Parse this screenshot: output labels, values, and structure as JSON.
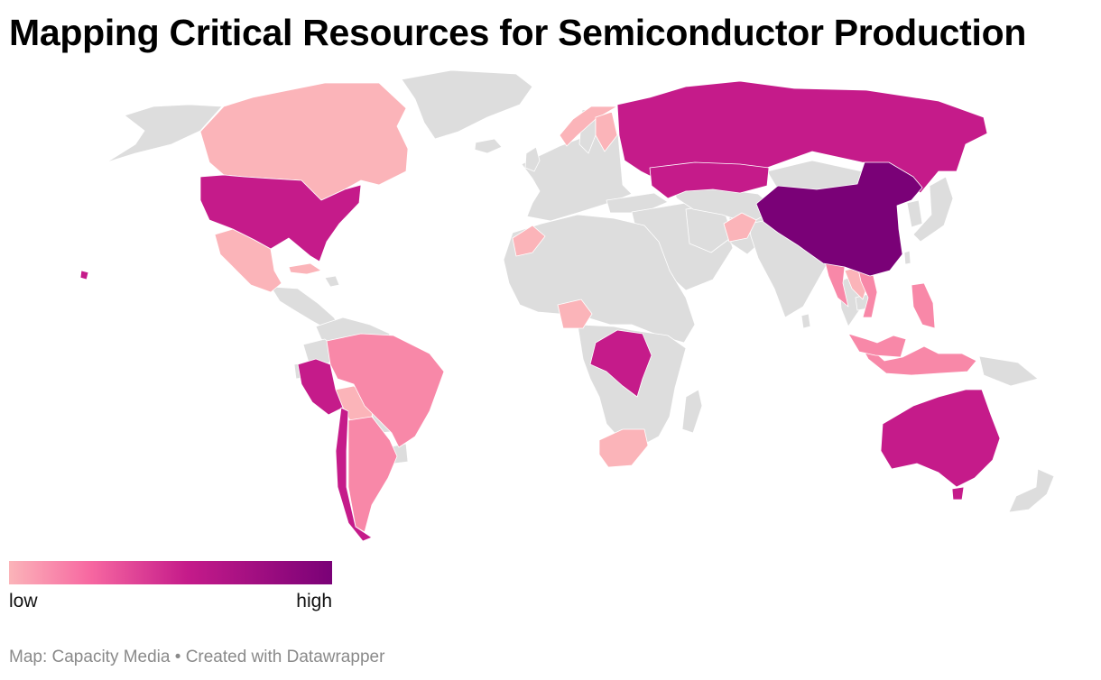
{
  "title": "Mapping Critical Resources for Semiconductor Production",
  "legend": {
    "low_label": "low",
    "high_label": "high",
    "gradient_colors": [
      "#fbb4b9",
      "#f768a1",
      "#c51b8a",
      "#7a0177"
    ]
  },
  "footer": {
    "source": "Map: Capacity Media",
    "separator": "•",
    "credit": "Created with Datawrapper"
  },
  "map": {
    "no_data_color": "#dddddd",
    "levels": {
      "low": "#fbb4b9",
      "medium_low": "#f888a8",
      "medium_high": "#c51b8a",
      "highest": "#7a0177"
    },
    "regions": [
      {
        "name": "Canada",
        "level": "low"
      },
      {
        "name": "Mexico",
        "level": "low"
      },
      {
        "name": "Cuba",
        "level": "low"
      },
      {
        "name": "Bolivia",
        "level": "low"
      },
      {
        "name": "Norway",
        "level": "low"
      },
      {
        "name": "Finland",
        "level": "low"
      },
      {
        "name": "Morocco",
        "level": "low"
      },
      {
        "name": "Nigeria",
        "level": "low"
      },
      {
        "name": "South Africa",
        "level": "low"
      },
      {
        "name": "Afghanistan",
        "level": "low"
      },
      {
        "name": "Laos",
        "level": "low"
      },
      {
        "name": "Brazil",
        "level": "medium_low"
      },
      {
        "name": "Argentina",
        "level": "medium_low"
      },
      {
        "name": "Myanmar",
        "level": "medium_low"
      },
      {
        "name": "Vietnam",
        "level": "medium_low"
      },
      {
        "name": "Philippines",
        "level": "medium_low"
      },
      {
        "name": "Indonesia",
        "level": "medium_low"
      },
      {
        "name": "Malaysia",
        "level": "medium_low"
      },
      {
        "name": "United States",
        "level": "medium_high"
      },
      {
        "name": "Russia",
        "level": "medium_high"
      },
      {
        "name": "Kazakhstan",
        "level": "medium_high"
      },
      {
        "name": "Peru",
        "level": "medium_high"
      },
      {
        "name": "Chile",
        "level": "medium_high"
      },
      {
        "name": "DR Congo",
        "level": "medium_high"
      },
      {
        "name": "Australia",
        "level": "medium_high"
      },
      {
        "name": "China",
        "level": "highest"
      }
    ]
  }
}
